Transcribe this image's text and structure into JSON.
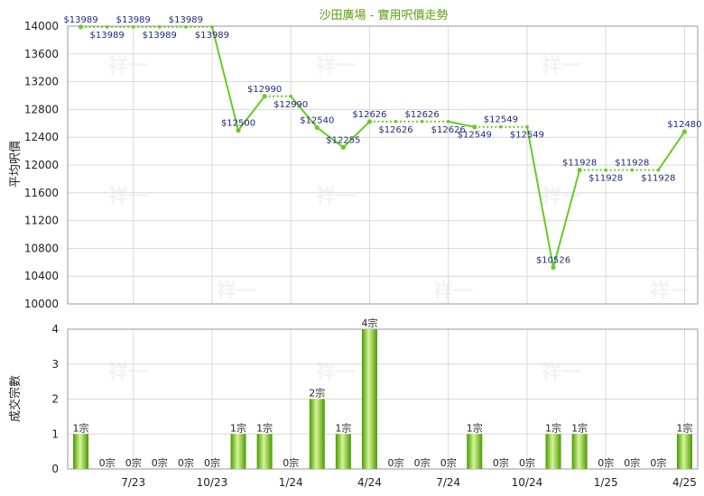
{
  "colors": {
    "line": "#66cc22",
    "bar_dark": "#4a9a00",
    "bar_light": "#d6f59a",
    "grid": "#d8d8d8",
    "axis": "#9a9a9a",
    "title": "#5a9e10",
    "label": "#1f2a7a"
  },
  "watermark": "祥一",
  "chart_data": [
    {
      "type": "line",
      "title": "沙田廣場 - 實用呎價走勢",
      "ylabel": "平均呎價",
      "ylim": [
        10000,
        14000
      ],
      "yticks": [
        10000,
        10400,
        10800,
        11200,
        11600,
        12000,
        12400,
        12800,
        13200,
        13600,
        14000
      ],
      "x_tick_labels": [
        {
          "index": 2,
          "label": "7/23"
        },
        {
          "index": 5,
          "label": "10/23"
        },
        {
          "index": 8,
          "label": "1/24"
        },
        {
          "index": 11,
          "label": "4/24"
        },
        {
          "index": 14,
          "label": "7/24"
        },
        {
          "index": 17,
          "label": "10/24"
        },
        {
          "index": 20,
          "label": "1/25"
        },
        {
          "index": 23,
          "label": "4/25"
        }
      ],
      "values": [
        13989,
        13989,
        13989,
        13989,
        13989,
        13989,
        12500,
        12990,
        12990,
        12540,
        12255,
        12626,
        12626,
        12626,
        12626,
        12549,
        12549,
        12549,
        10526,
        11928,
        11928,
        11928,
        11928,
        12480
      ],
      "actual": [
        true,
        false,
        false,
        false,
        false,
        false,
        true,
        true,
        false,
        true,
        true,
        true,
        false,
        false,
        false,
        true,
        false,
        false,
        true,
        true,
        false,
        false,
        false,
        true
      ],
      "labels": [
        "$13989",
        "$13989",
        "$13989",
        "$13989",
        "$13989",
        "$13989",
        "$12500",
        "$12990",
        "$12990",
        "$12540",
        "$12255",
        "$12626",
        "$12626",
        "$12626",
        "$12626",
        "$12549",
        "$12549",
        "$12549",
        "$10526",
        "$11928",
        "$11928",
        "$11928",
        "$11928",
        "$12480"
      ],
      "label_pos": [
        "above",
        "below",
        "above",
        "below",
        "above",
        "below",
        "above",
        "above",
        "below",
        "above",
        "above",
        "above",
        "below",
        "above",
        "below",
        "below",
        "above",
        "below",
        "above",
        "above",
        "below",
        "above",
        "below",
        "above"
      ]
    },
    {
      "type": "bar",
      "ylabel": "成交宗數",
      "ylim": [
        0,
        4
      ],
      "yticks": [
        0,
        1,
        2,
        3,
        4
      ],
      "values": [
        1,
        0,
        0,
        0,
        0,
        0,
        1,
        1,
        0,
        2,
        1,
        4,
        0,
        0,
        0,
        1,
        0,
        0,
        1,
        1,
        0,
        0,
        0,
        1
      ],
      "labels": [
        "1宗",
        "0宗",
        "0宗",
        "0宗",
        "0宗",
        "0宗",
        "1宗",
        "1宗",
        "0宗",
        "2宗",
        "1宗",
        "4宗",
        "0宗",
        "0宗",
        "0宗",
        "1宗",
        "0宗",
        "0宗",
        "1宗",
        "1宗",
        "0宗",
        "0宗",
        "0宗",
        "1宗"
      ]
    }
  ]
}
